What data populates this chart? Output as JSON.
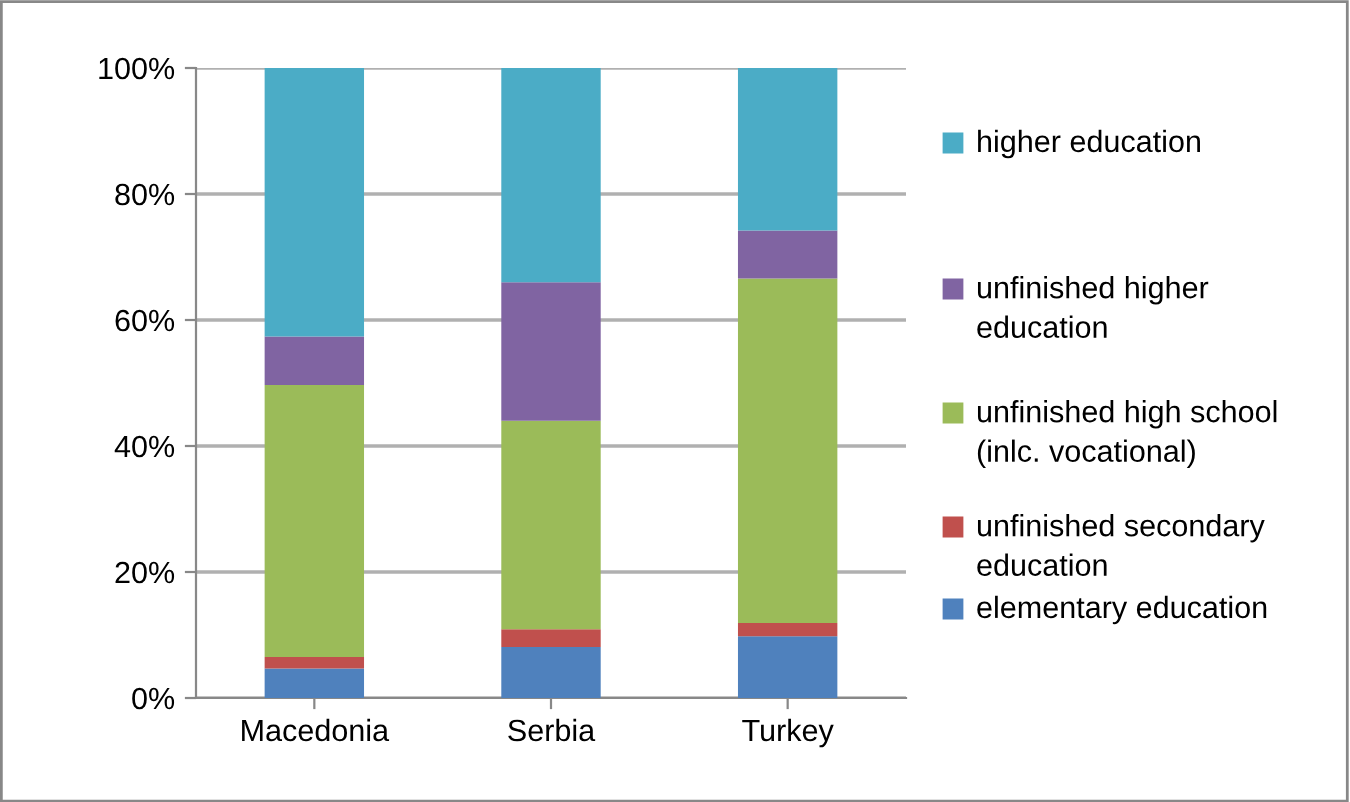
{
  "chart_data": {
    "type": "bar",
    "stacked": true,
    "categories": [
      "Macedonia",
      "Serbia",
      "Turkey"
    ],
    "series": [
      {
        "name": "elementary education",
        "color": "#4f81bd",
        "values": [
          4.7,
          8.1,
          9.8
        ]
      },
      {
        "name": "unfinished secondary education",
        "color": "#c0504d",
        "values": [
          1.8,
          2.8,
          2.1
        ]
      },
      {
        "name": "unfinished high school (inlc. vocational)",
        "color": "#9bbb59",
        "values": [
          43.2,
          33.1,
          54.7
        ]
      },
      {
        "name": "unfinished higher education",
        "color": "#8064a2",
        "values": [
          7.7,
          22.0,
          7.6
        ]
      },
      {
        "name": "higher education",
        "color": "#4bacc6",
        "values": [
          42.6,
          34.0,
          25.8
        ]
      }
    ],
    "ylim": [
      0,
      100
    ],
    "yticks": [
      {
        "value": 0,
        "label": "0%"
      },
      {
        "value": 20,
        "label": "20%"
      },
      {
        "value": 40,
        "label": "40%"
      },
      {
        "value": 60,
        "label": "60%"
      },
      {
        "value": 80,
        "label": "80%"
      },
      {
        "value": 100,
        "label": "100%"
      }
    ],
    "grid": "y",
    "legend": "right"
  }
}
